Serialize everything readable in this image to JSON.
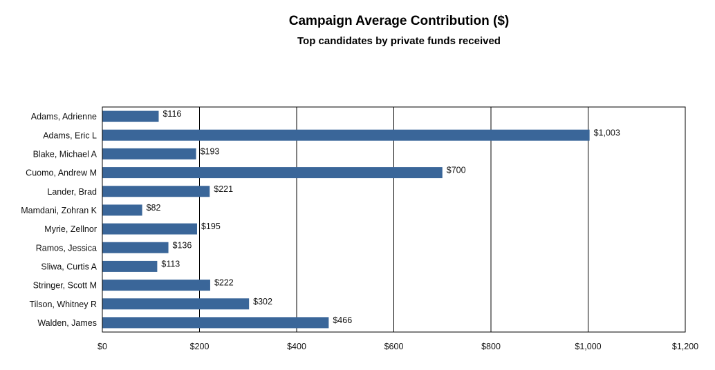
{
  "chart_data": {
    "type": "bar",
    "orientation": "horizontal",
    "title": "Campaign Average Contribution ($)",
    "subtitle": "Top candidates by private funds received",
    "categories": [
      "Adams, Adrienne",
      "Adams, Eric L",
      "Blake, Michael A",
      "Cuomo, Andrew M",
      "Lander, Brad",
      "Mamdani, Zohran K",
      "Myrie, Zellnor",
      "Ramos, Jessica",
      "Sliwa, Curtis A",
      "Stringer, Scott M",
      "Tilson, Whitney R",
      "Walden, James"
    ],
    "values": [
      116,
      1003,
      193,
      700,
      221,
      82,
      195,
      136,
      113,
      222,
      302,
      466
    ],
    "value_labels": [
      "$116",
      "$1,003",
      "$193",
      "$700",
      "$221",
      "$82",
      "$195",
      "$136",
      "$113",
      "$222",
      "$302",
      "$466"
    ],
    "xlim": [
      0,
      1200
    ],
    "x_ticks": [
      0,
      200,
      400,
      600,
      800,
      1000,
      1200
    ],
    "x_tick_labels": [
      "$0",
      "$200",
      "$400",
      "$600",
      "$800",
      "$1,000",
      "$1,200"
    ],
    "xlabel": "",
    "ylabel": "",
    "grid": "vertical",
    "legend": "none",
    "bar_color": "#3a6699"
  }
}
